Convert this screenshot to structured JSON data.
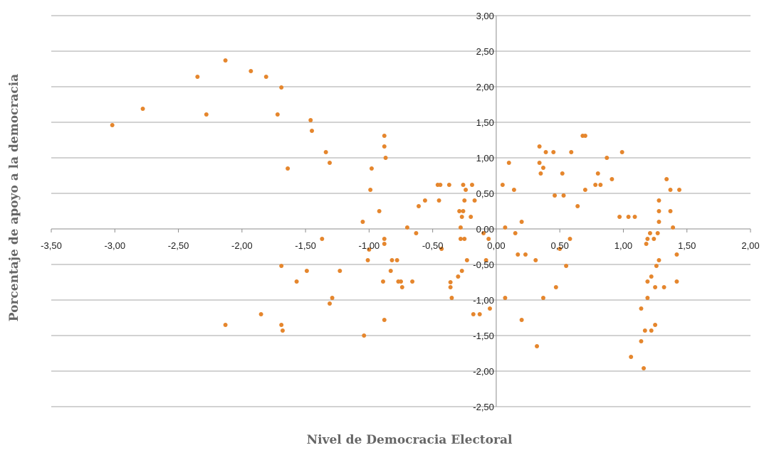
{
  "chart_data": {
    "type": "scatter",
    "title": "",
    "xlabel": "Nivel de Democracia Electoral",
    "ylabel": "Porcentaje de apoyo a la democracia",
    "xlim": [
      -3.5,
      2.0
    ],
    "ylim": [
      -2.5,
      3.0
    ],
    "xticks": [
      "-3,50",
      "-3,00",
      "-2,50",
      "-2,00",
      "-1,50",
      "-1,00",
      "-0,50",
      "0,00",
      "0,50",
      "1,00",
      "1,50",
      "2,00"
    ],
    "yticks": [
      "3,00",
      "2,50",
      "2,00",
      "1,50",
      "1,00",
      "0,50",
      "0,00",
      "-0,50",
      "-1,00",
      "-1,50",
      "-2,00",
      "-2,50"
    ],
    "grid": true,
    "marker_color": "#E5862D",
    "points": [
      [
        -3.02,
        1.46
      ],
      [
        -2.78,
        1.69
      ],
      [
        -2.35,
        2.14
      ],
      [
        -2.28,
        1.61
      ],
      [
        -2.13,
        2.37
      ],
      [
        -2.13,
        -1.35
      ],
      [
        -1.93,
        2.22
      ],
      [
        -1.85,
        -1.2
      ],
      [
        -1.81,
        2.14
      ],
      [
        -1.72,
        1.61
      ],
      [
        -1.69,
        1.99
      ],
      [
        -1.69,
        -0.52
      ],
      [
        -1.69,
        -1.35
      ],
      [
        -1.68,
        -1.43
      ],
      [
        -1.64,
        0.85
      ],
      [
        -1.57,
        -0.74
      ],
      [
        -1.49,
        -0.59
      ],
      [
        -1.46,
        1.53
      ],
      [
        -1.45,
        1.38
      ],
      [
        -1.37,
        -0.14
      ],
      [
        -1.34,
        1.08
      ],
      [
        -1.31,
        0.93
      ],
      [
        -1.31,
        -1.05
      ],
      [
        -1.29,
        -0.97
      ],
      [
        -1.23,
        -0.59
      ],
      [
        -1.05,
        0.1
      ],
      [
        -1.04,
        -1.5
      ],
      [
        -1.01,
        -0.44
      ],
      [
        -1.0,
        -0.29
      ],
      [
        -0.99,
        0.55
      ],
      [
        -0.98,
        0.85
      ],
      [
        -0.92,
        0.25
      ],
      [
        -0.89,
        -0.74
      ],
      [
        -0.88,
        1.31
      ],
      [
        -0.88,
        1.16
      ],
      [
        -0.88,
        -0.14
      ],
      [
        -0.88,
        -0.21
      ],
      [
        -0.88,
        -1.28
      ],
      [
        -0.87,
        1.0
      ],
      [
        -0.83,
        -0.59
      ],
      [
        -0.82,
        -0.44
      ],
      [
        -0.78,
        -0.44
      ],
      [
        -0.77,
        -0.74
      ],
      [
        -0.75,
        -0.74
      ],
      [
        -0.74,
        -0.82
      ],
      [
        -0.7,
        0.02
      ],
      [
        -0.66,
        -0.74
      ],
      [
        -0.63,
        -0.06
      ],
      [
        -0.61,
        0.32
      ],
      [
        -0.56,
        0.4
      ],
      [
        -0.46,
        0.62
      ],
      [
        -0.45,
        0.4
      ],
      [
        -0.44,
        0.62
      ],
      [
        -0.43,
        -0.28
      ],
      [
        -0.37,
        0.62
      ],
      [
        -0.36,
        -0.75
      ],
      [
        -0.36,
        -0.82
      ],
      [
        -0.35,
        -0.97
      ],
      [
        -0.3,
        -0.67
      ],
      [
        -0.29,
        0.25
      ],
      [
        -0.28,
        0.02
      ],
      [
        -0.28,
        -0.14
      ],
      [
        -0.27,
        0.17
      ],
      [
        -0.26,
        0.25
      ],
      [
        -0.25,
        0.4
      ],
      [
        -0.26,
        0.62
      ],
      [
        -0.24,
        0.55
      ],
      [
        -0.27,
        -0.59
      ],
      [
        -0.25,
        -0.14
      ],
      [
        -0.23,
        -0.44
      ],
      [
        -0.2,
        0.17
      ],
      [
        -0.19,
        0.62
      ],
      [
        -0.18,
        -1.2
      ],
      [
        -0.17,
        0.4
      ],
      [
        -0.13,
        -1.2
      ],
      [
        -0.1,
        -0.06
      ],
      [
        -0.08,
        -0.44
      ],
      [
        -0.06,
        -0.14
      ],
      [
        -0.05,
        -1.12
      ],
      [
        0.05,
        0.62
      ],
      [
        0.07,
        0.02
      ],
      [
        0.07,
        -0.97
      ],
      [
        0.1,
        0.93
      ],
      [
        0.14,
        0.55
      ],
      [
        0.15,
        -0.06
      ],
      [
        0.17,
        -0.36
      ],
      [
        0.2,
        0.1
      ],
      [
        0.2,
        -1.28
      ],
      [
        0.23,
        -0.36
      ],
      [
        0.31,
        -0.44
      ],
      [
        0.32,
        -1.65
      ],
      [
        0.34,
        1.16
      ],
      [
        0.34,
        0.93
      ],
      [
        0.35,
        0.78
      ],
      [
        0.37,
        0.86
      ],
      [
        0.37,
        -0.97
      ],
      [
        0.39,
        1.08
      ],
      [
        0.45,
        1.08
      ],
      [
        0.46,
        0.47
      ],
      [
        0.47,
        -0.82
      ],
      [
        0.5,
        -0.28
      ],
      [
        0.52,
        0.78
      ],
      [
        0.53,
        0.47
      ],
      [
        0.55,
        -0.52
      ],
      [
        0.58,
        -0.14
      ],
      [
        0.59,
        1.08
      ],
      [
        0.64,
        0.32
      ],
      [
        0.68,
        1.31
      ],
      [
        0.7,
        1.31
      ],
      [
        0.7,
        0.55
      ],
      [
        0.78,
        0.62
      ],
      [
        0.8,
        0.78
      ],
      [
        0.82,
        0.62
      ],
      [
        0.87,
        1.0
      ],
      [
        0.91,
        0.7
      ],
      [
        0.97,
        0.17
      ],
      [
        0.99,
        1.08
      ],
      [
        1.04,
        0.17
      ],
      [
        1.06,
        -1.8
      ],
      [
        1.09,
        0.17
      ],
      [
        1.14,
        -1.12
      ],
      [
        1.14,
        -1.58
      ],
      [
        1.16,
        -1.96
      ],
      [
        1.17,
        -1.43
      ],
      [
        1.18,
        -0.21
      ],
      [
        1.19,
        -0.14
      ],
      [
        1.19,
        -0.74
      ],
      [
        1.19,
        -0.97
      ],
      [
        1.21,
        -0.06
      ],
      [
        1.22,
        -0.67
      ],
      [
        1.22,
        -1.43
      ],
      [
        1.24,
        -0.14
      ],
      [
        1.25,
        -1.35
      ],
      [
        1.25,
        -0.82
      ],
      [
        1.26,
        -0.52
      ],
      [
        1.27,
        -0.06
      ],
      [
        1.28,
        -0.44
      ],
      [
        1.28,
        0.1
      ],
      [
        1.28,
        0.25
      ],
      [
        1.28,
        0.4
      ],
      [
        1.32,
        -0.82
      ],
      [
        1.34,
        0.7
      ],
      [
        1.37,
        0.55
      ],
      [
        1.37,
        0.25
      ],
      [
        1.39,
        0.02
      ],
      [
        1.42,
        -0.36
      ],
      [
        1.42,
        -0.74
      ],
      [
        1.44,
        0.55
      ]
    ]
  }
}
